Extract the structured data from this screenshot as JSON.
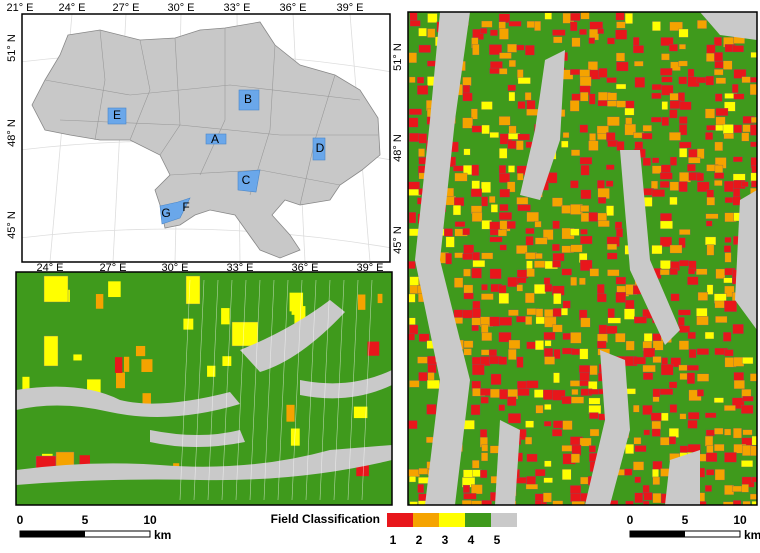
{
  "overview_map": {
    "top_lon_labels": [
      "21° E",
      "24° E",
      "27° E",
      "30° E",
      "33° E",
      "36° E",
      "39° E"
    ],
    "bottom_lon_labels": [
      "24° E",
      "27° E",
      "30° E",
      "33° E",
      "36° E",
      "39° E"
    ],
    "left_lat_labels": [
      "51° N",
      "48° N",
      "45° N"
    ],
    "right_lat_labels": [
      "51° N",
      "48° N",
      "45° N"
    ],
    "regions": [
      "A",
      "B",
      "C",
      "D",
      "E",
      "F",
      "G"
    ]
  },
  "scale_bars": [
    {
      "ticks": [
        "0",
        "5",
        "10"
      ],
      "unit": "km"
    },
    {
      "ticks": [
        "0",
        "5",
        "10"
      ],
      "unit": "km"
    }
  ],
  "legend": {
    "title": "Field Classification",
    "classes": [
      {
        "label": "1",
        "color": "#e8161b"
      },
      {
        "label": "2",
        "color": "#f5a300"
      },
      {
        "label": "3",
        "color": "#ffff00"
      },
      {
        "label": "4",
        "color": "#3f9a1c"
      },
      {
        "label": "5",
        "color": "#c9c9c9"
      }
    ]
  }
}
